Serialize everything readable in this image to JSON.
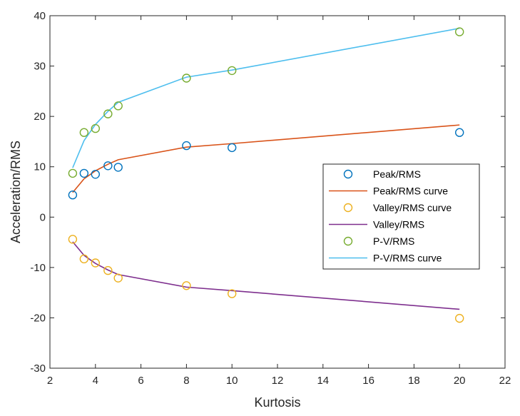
{
  "chart_data": {
    "type": "scatter",
    "xlabel": "Kurtosis",
    "ylabel": "Acceleration/RMS",
    "xlim": [
      2,
      22
    ],
    "ylim": [
      -30,
      40
    ],
    "x_ticks": [
      2,
      4,
      6,
      8,
      10,
      12,
      14,
      16,
      18,
      20,
      22
    ],
    "y_ticks": [
      -30,
      -20,
      -10,
      0,
      10,
      20,
      30,
      40
    ],
    "grid": false,
    "legend_position": "center-right",
    "series": [
      {
        "name": "Peak/RMS",
        "kind": "markers",
        "color": "#0072BD",
        "x": [
          3,
          3.5,
          4,
          4.55,
          5,
          8,
          10,
          20
        ],
        "y": [
          4.4,
          8.7,
          8.5,
          10.2,
          9.9,
          14.2,
          13.8,
          16.8
        ]
      },
      {
        "name": "Peak/RMS curve",
        "kind": "line",
        "color": "#D95319",
        "x": [
          3,
          3.5,
          4,
          4.55,
          5,
          8,
          10,
          20
        ],
        "y": [
          4.9,
          7.6,
          9.2,
          10.5,
          11.4,
          13.9,
          14.6,
          18.3
        ]
      },
      {
        "name": "Valley/RMS curve",
        "kind": "markers",
        "color": "#EDB120",
        "x": [
          3,
          3.5,
          4,
          4.55,
          5,
          8,
          10,
          20
        ],
        "y": [
          -4.4,
          -8.3,
          -9.1,
          -10.6,
          -12.1,
          -13.6,
          -15.2,
          -20.1
        ]
      },
      {
        "name": "Valley/RMS",
        "kind": "line",
        "color": "#7E2F8E",
        "x": [
          3,
          3.5,
          4,
          4.55,
          5,
          8,
          10,
          20
        ],
        "y": [
          -4.9,
          -7.6,
          -9.2,
          -10.5,
          -11.4,
          -13.9,
          -14.6,
          -18.3
        ]
      },
      {
        "name": "P-V/RMS",
        "kind": "markers",
        "color": "#77AC30",
        "x": [
          3,
          3.5,
          4,
          4.55,
          5,
          8,
          10,
          20
        ],
        "y": [
          8.7,
          16.8,
          17.6,
          20.5,
          22.1,
          27.6,
          29.1,
          36.8
        ]
      },
      {
        "name": "P-V/RMS curve",
        "kind": "line",
        "color": "#4DBEEE",
        "x": [
          3,
          3.5,
          4,
          4.55,
          5,
          8,
          10,
          20
        ],
        "y": [
          9.8,
          15.2,
          18.4,
          21.0,
          22.8,
          27.8,
          29.2,
          37.5
        ]
      }
    ]
  }
}
